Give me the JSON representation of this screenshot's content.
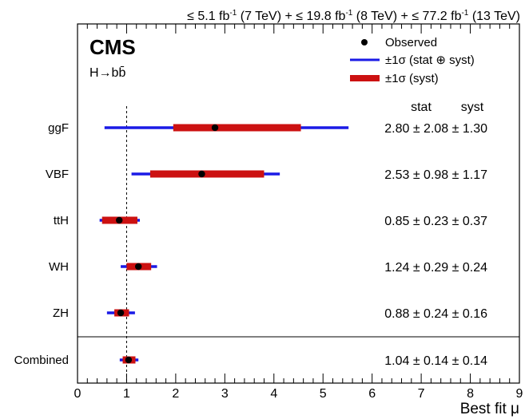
{
  "header": {
    "lumi_7": "≤ 5.1 fb",
    "lumi_7_sup": "-1",
    "lumi_7_tail": " (7 TeV) + ",
    "lumi_8": "≤ 19.8 fb",
    "lumi_8_sup": "-1",
    "lumi_8_tail": " (8 TeV) + ",
    "lumi_13": "≤ 77.2 fb",
    "lumi_13_sup": "-1",
    "lumi_13_tail": " (13 TeV)"
  },
  "experiment": "CMS",
  "process": "H→bb̄",
  "legend": {
    "observed": "Observed",
    "total": "±1σ (stat ⊕ syst)",
    "syst": "±1σ (syst)"
  },
  "column_headers": {
    "stat": "stat",
    "syst": "syst"
  },
  "colors": {
    "total": "#1a1ae6",
    "syst": "#cc1111",
    "point": "#000000"
  },
  "chart_data": {
    "type": "scatter",
    "xlabel": "Best fit μ",
    "xlim": [
      0,
      9
    ],
    "x_ticks": [
      "0",
      "1",
      "2",
      "3",
      "4",
      "5",
      "6",
      "7",
      "8",
      "9"
    ],
    "reference_line": 1,
    "categories": [
      "ggF",
      "VBF",
      "ttH",
      "WH",
      "ZH",
      "Combined"
    ],
    "points": [
      {
        "label": "ggF",
        "mu": 2.8,
        "stat": 2.08,
        "syst": 1.3,
        "text": "2.80 ± 2.08 ± 1.30",
        "total_lo": 0.55,
        "total_hi": 5.52,
        "syst_lo": 1.95,
        "syst_hi": 4.55
      },
      {
        "label": "VBF",
        "mu": 2.53,
        "stat": 0.98,
        "syst": 1.17,
        "text": "2.53 ± 0.98 ± 1.17",
        "total_lo": 1.1,
        "total_hi": 4.12,
        "syst_lo": 1.48,
        "syst_hi": 3.8
      },
      {
        "label": "ttH",
        "mu": 0.85,
        "stat": 0.23,
        "syst": 0.37,
        "text": "0.85 ± 0.23 ± 0.37",
        "total_lo": 0.45,
        "total_hi": 1.27,
        "syst_lo": 0.5,
        "syst_hi": 1.22
      },
      {
        "label": "WH",
        "mu": 1.24,
        "stat": 0.29,
        "syst": 0.24,
        "text": "1.24 ± 0.29 ± 0.24",
        "total_lo": 0.88,
        "total_hi": 1.62,
        "syst_lo": 1.0,
        "syst_hi": 1.5
      },
      {
        "label": "ZH",
        "mu": 0.88,
        "stat": 0.24,
        "syst": 0.16,
        "text": "0.88 ± 0.24 ± 0.16",
        "total_lo": 0.6,
        "total_hi": 1.17,
        "syst_lo": 0.75,
        "syst_hi": 1.05
      },
      {
        "label": "Combined",
        "mu": 1.04,
        "stat": 0.14,
        "syst": 0.14,
        "text": "1.04 ± 0.14 ± 0.14",
        "total_lo": 0.86,
        "total_hi": 1.24,
        "syst_lo": 0.92,
        "syst_hi": 1.18
      }
    ]
  }
}
